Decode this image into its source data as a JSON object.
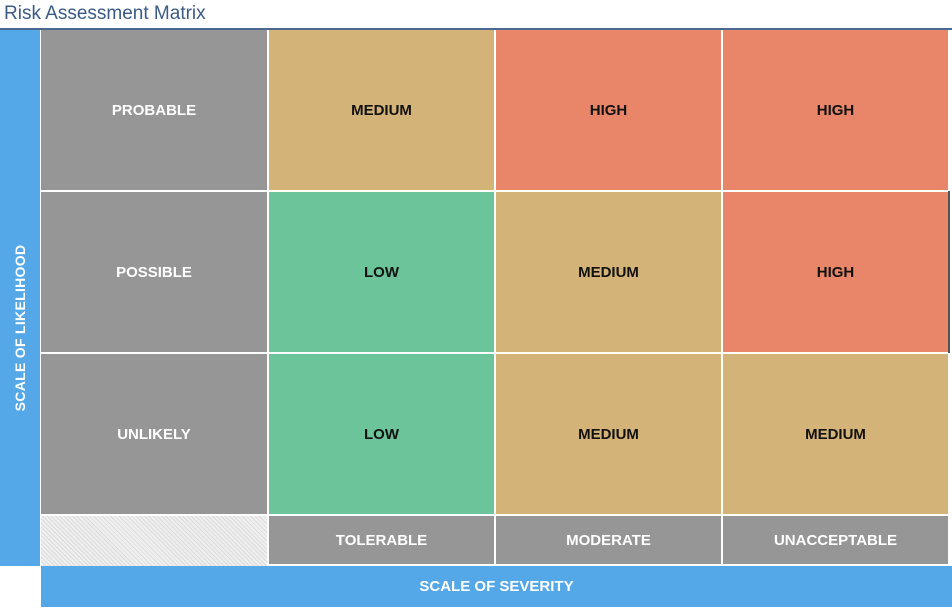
{
  "title": "Risk Assessment Matrix",
  "y_axis_label": "SCALE OF LIKELIHOOD",
  "x_axis_label": "SCALE OF SEVERITY",
  "likelihood": [
    "PROBABLE",
    "POSSIBLE",
    "UNLIKELY"
  ],
  "severity": [
    "TOLERABLE",
    "MODERATE",
    "UNACCEPTABLE"
  ],
  "matrix": [
    [
      "MEDIUM",
      "HIGH",
      "HIGH"
    ],
    [
      "LOW",
      "MEDIUM",
      "HIGH"
    ],
    [
      "LOW",
      "MEDIUM",
      "MEDIUM"
    ]
  ],
  "colors": {
    "axis": "#55a8e8",
    "header": "#969696",
    "low": "#6cc49a",
    "medium": "#d3b377",
    "high": "#e98669"
  }
}
